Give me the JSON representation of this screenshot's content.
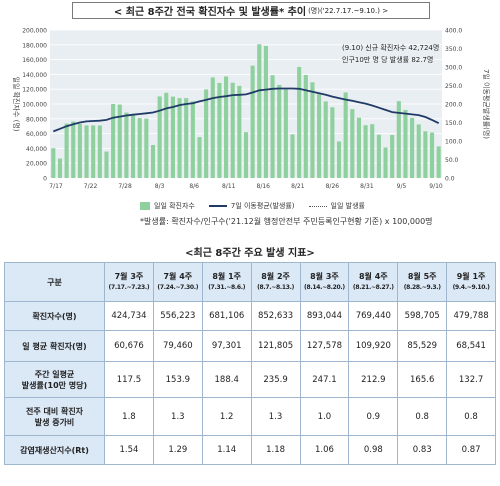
{
  "header": {
    "title": "< 최근 8주간 전국 확진자수 및 발생률* 추이",
    "subtitle": "(명)('22.7.17.~9.10.) >"
  },
  "chart_data": {
    "type": "bar+line",
    "x_tick_labels": [
      "7/17",
      "7/22",
      "7/28",
      "8/3",
      "8/6",
      "8/11",
      "8/16",
      "8/21",
      "8/26",
      "8/31",
      "9/5",
      "9/10"
    ],
    "left_axis": {
      "label": "일일 확진자수 (명)",
      "min": 0,
      "max": 200000,
      "ticks": [
        "0",
        "20,000",
        "40,000",
        "60,000",
        "80,000",
        "100,000",
        "120,000",
        "140,000",
        "160,000",
        "180,000",
        "200,000"
      ]
    },
    "right_axis": {
      "label": "7일 이동평균발생률(명)",
      "min": 0,
      "max": 400,
      "ticks": [
        "0.0",
        "50.0",
        "100.0",
        "150.0",
        "200.0",
        "250.0",
        "300.0",
        "350.0",
        "400.0"
      ]
    },
    "series": [
      {
        "name": "일일 확진자수",
        "type": "bar",
        "color": "#8fd19e",
        "values": [
          40300,
          26300,
          73500,
          76400,
          73100,
          71100,
          71100,
          71000,
          35800,
          100000,
          99300,
          88400,
          85200,
          81000,
          80200,
          44600,
          110300,
          115200,
          110000,
          107900,
          107900,
          103600,
          55300,
          119800,
          135900,
          128500,
          137200,
          128700,
          124500,
          62000,
          151800,
          180700,
          178500,
          138800,
          125800,
          119800,
          59000,
          150100,
          139200,
          129300,
          113300,
          103500,
          95600,
          49400,
          115600,
          93100,
          81500,
          71400,
          72700,
          58500,
          41300,
          58100,
          103900,
          92000,
          81200,
          72400,
          63100,
          61500,
          42700
        ]
      },
      {
        "name": "7일 이동평균(발생률)",
        "type": "line",
        "color": "#1f3b66",
        "values": [
          126,
          133,
          140,
          145,
          150,
          153,
          154,
          155,
          157,
          163,
          166,
          169,
          171,
          173,
          175,
          177,
          182,
          188,
          192,
          197,
          200,
          202,
          207,
          211,
          216,
          219,
          221,
          224,
          225,
          226,
          231,
          237,
          239,
          241,
          242,
          242,
          242,
          241,
          237,
          233,
          229,
          225,
          220,
          216,
          212,
          209,
          205,
          201,
          196,
          190,
          184,
          178,
          176,
          174,
          172,
          170,
          165,
          157,
          148
        ]
      },
      {
        "name": "일일 발생률",
        "type": "line",
        "style": "dotted",
        "color": "#555555"
      }
    ],
    "annotation": {
      "line1": "(9.10) 신규 확진자수 42,724명",
      "line2": "인구10만 명 당 발생률 82.7명"
    }
  },
  "legend": {
    "bar": "일일 확진자수",
    "line": "7일 이동평균(발생률)",
    "dotted": "일일 발생률"
  },
  "footnote": "*발생률: 확진자수/인구수('21.12월 행정안전부 주민등록인구현황 기준) x 100,000명",
  "table": {
    "title": "<최근 8주간 주요 발생 지표>",
    "corner": "구분",
    "columns": [
      {
        "week": "7월 3주",
        "range": "(7.17.~7.23.)"
      },
      {
        "week": "7월 4주",
        "range": "(7.24.~7.30.)"
      },
      {
        "week": "8월 1주",
        "range": "(7.31.~8.6.)"
      },
      {
        "week": "8월 2주",
        "range": "(8.7.~8.13.)"
      },
      {
        "week": "8월 3주",
        "range": "(8.14.~8.20.)"
      },
      {
        "week": "8월 4주",
        "range": "(8.21.~8.27.)"
      },
      {
        "week": "8월 5주",
        "range": "(8.28.~9.3.)"
      },
      {
        "week": "9월 1주",
        "range": "(9.4.~9.10.)"
      }
    ],
    "rows": [
      {
        "label": [
          "확진자수(명)"
        ],
        "values": [
          "424,734",
          "556,223",
          "681,106",
          "852,633",
          "893,044",
          "769,440",
          "598,705",
          "479,788"
        ]
      },
      {
        "label": [
          "일 평균 확진자(명)"
        ],
        "values": [
          "60,676",
          "79,460",
          "97,301",
          "121,805",
          "127,578",
          "109,920",
          "85,529",
          "68,541"
        ]
      },
      {
        "label": [
          "주간 일평균",
          "발생률(10만 명당)"
        ],
        "values": [
          "117.5",
          "153.9",
          "188.4",
          "235.9",
          "247.1",
          "212.9",
          "165.6",
          "132.7"
        ]
      },
      {
        "label": [
          "전주 대비 확진자",
          "발생 증가비"
        ],
        "values": [
          "1.8",
          "1.3",
          "1.2",
          "1.3",
          "1.0",
          "0.9",
          "0.8",
          "0.8"
        ]
      },
      {
        "label": [
          "감염재생산지수(Rt)"
        ],
        "values": [
          "1.54",
          "1.29",
          "1.14",
          "1.18",
          "1.06",
          "0.98",
          "0.83",
          "0.87"
        ]
      }
    ]
  }
}
